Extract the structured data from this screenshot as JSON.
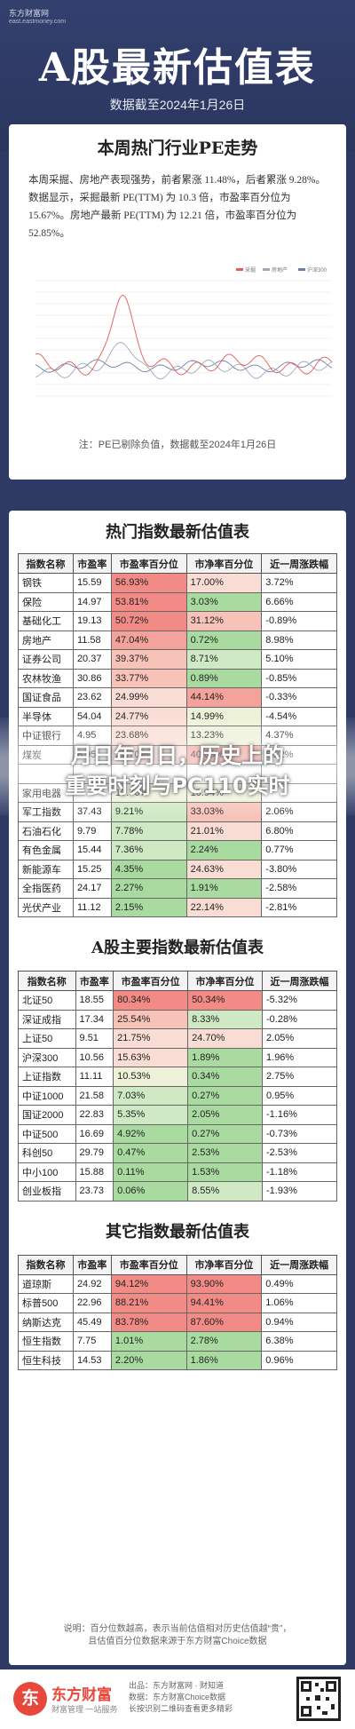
{
  "header": {
    "brand": "东方财富网",
    "brand_sub": "east.eastmoney.com",
    "title": "A股最新估值表",
    "date": "数据截至2024年1月26日"
  },
  "pe_section": {
    "title": "本周热门行业PE走势",
    "desc": "本周采掘、房地产表现强势，前者累涨 11.48%，后者累涨 9.28%。数据显示，采掘最新 PE(TTM) 为 10.3 倍，市盈率百分位为 15.67%。房地产最新 PE(TTM) 为 12.21 倍，市盈率百分位为 52.85%。",
    "note": "注：PE已剔除负值，数据截至2024年1月26日",
    "legend": [
      "采掘",
      "房地产",
      "沪深300"
    ],
    "colors": {
      "采掘": "#e25b55",
      "房地产": "#a0a8ba",
      "沪深300": "#6d7faa"
    }
  },
  "overlay": {
    "line1": "月日年月日，历史上的",
    "line2": "重要时刻与PC110实时"
  },
  "tables": {
    "headers": [
      "指数名称",
      "市盈率",
      "市盈率百分位",
      "市净率百分位",
      "近一周涨跌幅"
    ],
    "hot": {
      "title": "热门指数最新估值表",
      "rows": [
        [
          "钢铁",
          "15.59",
          "56.93%",
          "17.00%",
          "3.72%"
        ],
        [
          "保险",
          "14.97",
          "53.81%",
          "3.03%",
          "6.66%"
        ],
        [
          "基础化工",
          "19.13",
          "50.72%",
          "31.12%",
          "-0.89%"
        ],
        [
          "房地产",
          "11.58",
          "47.04%",
          "0.72%",
          "8.98%"
        ],
        [
          "证券公司",
          "20.37",
          "39.37%",
          "8.71%",
          "5.10%"
        ],
        [
          "农林牧渔",
          "30.86",
          "33.77%",
          "0.89%",
          "-0.85%"
        ],
        [
          "国证食品",
          "23.62",
          "24.99%",
          "44.14%",
          "-0.33%"
        ],
        [
          "半导体",
          "54.04",
          "24.77%",
          "14.99%",
          "-4.54%"
        ],
        [
          "中证银行",
          "4.95",
          "23.68%",
          "13.23%",
          "4.37%"
        ],
        [
          "煤炭",
          "8.95",
          "21.70%",
          "40.69%",
          "6.22%"
        ],
        [
          "",
          "",
          "",
          "",
          ""
        ],
        [
          "家用电器",
          "",
          "10.76%",
          "10.94%",
          ""
        ],
        [
          "军工指数",
          "37.43",
          "9.21%",
          "33.03%",
          "2.06%"
        ],
        [
          "石油石化",
          "9.79",
          "7.78%",
          "21.01%",
          "6.80%"
        ],
        [
          "有色金属",
          "15.44",
          "7.36%",
          "2.24%",
          "0.77%"
        ],
        [
          "新能源车",
          "15.25",
          "4.35%",
          "24.63%",
          "-3.80%"
        ],
        [
          "全指医药",
          "24.17",
          "2.27%",
          "1.91%",
          "-2.58%"
        ],
        [
          "光伏产业",
          "11.12",
          "2.15%",
          "22.14%",
          "-2.81%"
        ]
      ]
    },
    "main": {
      "title": "A股主要指数最新估值表",
      "rows": [
        [
          "北证50",
          "18.55",
          "80.34%",
          "50.34%",
          "-5.32%"
        ],
        [
          "深证成指",
          "17.34",
          "25.54%",
          "8.33%",
          "-0.28%"
        ],
        [
          "上证50",
          "9.51",
          "21.75%",
          "24.70%",
          "2.05%"
        ],
        [
          "沪深300",
          "10.56",
          "15.63%",
          "1.89%",
          "1.96%"
        ],
        [
          "上证指数",
          "11.11",
          "10.53%",
          "0.34%",
          "2.75%"
        ],
        [
          "中证1000",
          "21.58",
          "7.03%",
          "0.27%",
          "0.95%"
        ],
        [
          "国证2000",
          "22.83",
          "5.35%",
          "2.05%",
          "-1.16%"
        ],
        [
          "中证500",
          "16.69",
          "4.92%",
          "0.27%",
          "-0.73%"
        ],
        [
          "科创50",
          "29.79",
          "0.47%",
          "2.53%",
          "-2.53%"
        ],
        [
          "中小100",
          "15.88",
          "0.11%",
          "1.53%",
          "-1.18%"
        ],
        [
          "创业板指",
          "23.73",
          "0.06%",
          "8.55%",
          "-1.93%"
        ]
      ]
    },
    "other": {
      "title": "其它指数最新估值表",
      "rows": [
        [
          "道琼斯",
          "24.92",
          "94.12%",
          "93.90%",
          "0.49%"
        ],
        [
          "标普500",
          "22.96",
          "88.21%",
          "94.41%",
          "1.06%"
        ],
        [
          "纳斯达克",
          "45.49",
          "83.78%",
          "87.60%",
          "0.94%"
        ],
        [
          "恒生指数",
          "7.75",
          "1.01%",
          "2.78%",
          "6.38%"
        ],
        [
          "恒生科技",
          "14.53",
          "2.20%",
          "1.86%",
          "0.96%"
        ]
      ]
    }
  },
  "footnote": {
    "line1": "说明：百分位数越高，表示当前估值相对历史估值越“贵”，",
    "line2": "且估值百分位数据来源于东方财富Choice数据"
  },
  "footer": {
    "logo_text": "东",
    "brand": "东方财富",
    "slogan": "财富管理 一站服务",
    "line1": "出品：东方财富网 · 财知道",
    "line2": "数据：东方财富Choice数据",
    "line3": "长按识别二维码查看更多精彩"
  },
  "colors": {
    "red": "#f08a8a",
    "green": "#9ed29b",
    "navy": "#2e3a63"
  }
}
